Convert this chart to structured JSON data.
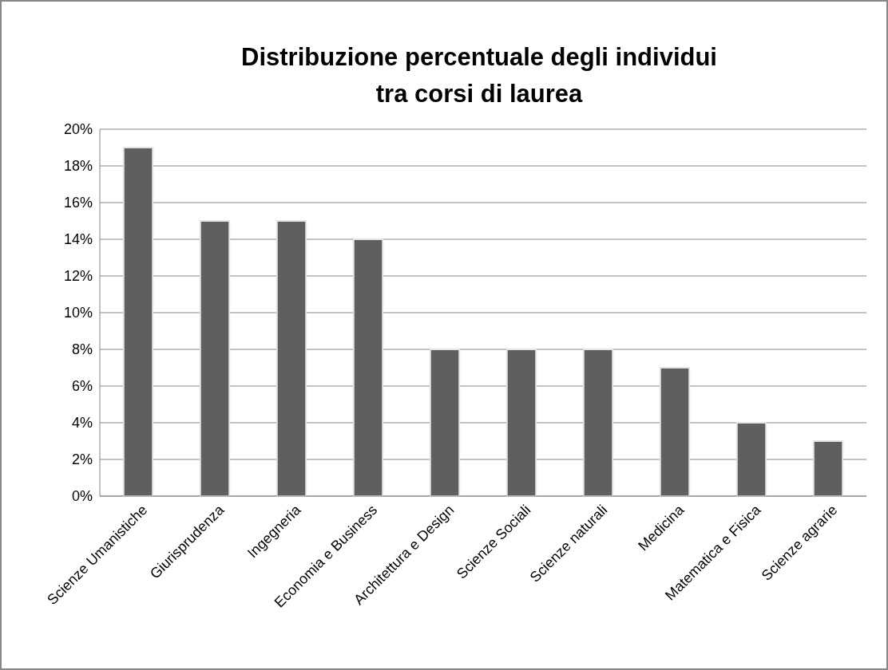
{
  "chart_data": {
    "type": "bar",
    "title": "Distribuzione percentuale degli individui\ntra corsi di laurea",
    "categories": [
      "Scienze Umanistiche",
      "Giurisprudenza",
      "Ingegneria",
      "Economia e Business",
      "Architettura e Design",
      "Scienze Sociali",
      "Scienze naturali",
      "Medicina",
      "Matematica e Fisica",
      "Scienze agrarie"
    ],
    "values": [
      19,
      15,
      15,
      14,
      8,
      8,
      8,
      7,
      4,
      3
    ],
    "color": "#5f5f5f",
    "ylim": [
      0,
      20
    ],
    "yticks": [
      {
        "value": 0,
        "label": "0%"
      },
      {
        "value": 2,
        "label": "2%"
      },
      {
        "value": 4,
        "label": "4%"
      },
      {
        "value": 6,
        "label": "6%"
      },
      {
        "value": 8,
        "label": "8%"
      },
      {
        "value": 10,
        "label": "10%"
      },
      {
        "value": 12,
        "label": "12%"
      },
      {
        "value": 14,
        "label": "14%"
      },
      {
        "value": 16,
        "label": "16%"
      },
      {
        "value": 18,
        "label": "18%"
      },
      {
        "value": 20,
        "label": "20%"
      }
    ],
    "grid": "y"
  }
}
